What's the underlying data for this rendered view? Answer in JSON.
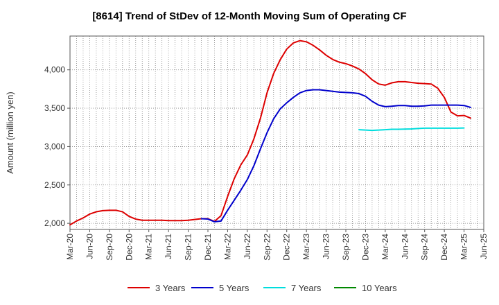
{
  "chart_data": {
    "type": "line",
    "title": "[8614]  Trend of StDev of 12-Month Moving Sum of Operating CF",
    "ylabel": "Amount (million yen)",
    "xlabel": "",
    "x_start": "Mar-20",
    "x_tick_labels": [
      "Mar-20",
      "Jun-20",
      "Sep-20",
      "Dec-20",
      "Mar-21",
      "Jun-21",
      "Sep-21",
      "Dec-21",
      "Mar-22",
      "Jun-22",
      "Sep-22",
      "Dec-22",
      "Mar-23",
      "Jun-23",
      "Sep-23",
      "Dec-23",
      "Mar-24",
      "Jun-24",
      "Sep-24",
      "Dec-24",
      "Mar-25",
      "Jun-25"
    ],
    "y_ticks": [
      2000,
      2500,
      3000,
      3500,
      4000
    ],
    "y_tick_labels": [
      "2,000",
      "2,500",
      "3,000",
      "3,500",
      "4,000"
    ],
    "ylim": [
      1920,
      4440
    ],
    "grid": true,
    "legend_position": "bottom",
    "series": [
      {
        "name": "3 Years",
        "color": "#dd0000",
        "start": "Mar-20",
        "values": [
          1980,
          2030,
          2070,
          2120,
          2150,
          2165,
          2170,
          2170,
          2150,
          2090,
          2055,
          2040,
          2040,
          2040,
          2040,
          2035,
          2035,
          2035,
          2040,
          2050,
          2060,
          2060,
          2025,
          2100,
          2350,
          2580,
          2760,
          2890,
          3100,
          3370,
          3700,
          3950,
          4130,
          4270,
          4350,
          4380,
          4365,
          4320,
          4260,
          4190,
          4135,
          4100,
          4080,
          4050,
          4010,
          3950,
          3870,
          3815,
          3800,
          3830,
          3845,
          3845,
          3835,
          3825,
          3820,
          3815,
          3760,
          3640,
          3450,
          3400,
          3405,
          3370
        ]
      },
      {
        "name": "5 Years",
        "color": "#0000cc",
        "start": "Nov-21",
        "values": [
          2060,
          2055,
          2020,
          2030,
          2170,
          2300,
          2430,
          2570,
          2750,
          2970,
          3180,
          3360,
          3490,
          3570,
          3640,
          3700,
          3730,
          3740,
          3740,
          3730,
          3720,
          3710,
          3705,
          3700,
          3690,
          3655,
          3590,
          3540,
          3520,
          3525,
          3535,
          3535,
          3525,
          3525,
          3530,
          3540,
          3540,
          3540,
          3540,
          3540,
          3535,
          3510
        ]
      },
      {
        "name": "7 Years",
        "color": "#00dddd",
        "start": "Nov-23",
        "values": [
          3220,
          3215,
          3210,
          3215,
          3220,
          3225,
          3225,
          3228,
          3230,
          3235,
          3240,
          3240,
          3240,
          3240,
          3240,
          3240,
          3242
        ]
      },
      {
        "name": "10 Years",
        "color": "#008800",
        "start": "Mar-25",
        "values": []
      }
    ]
  }
}
